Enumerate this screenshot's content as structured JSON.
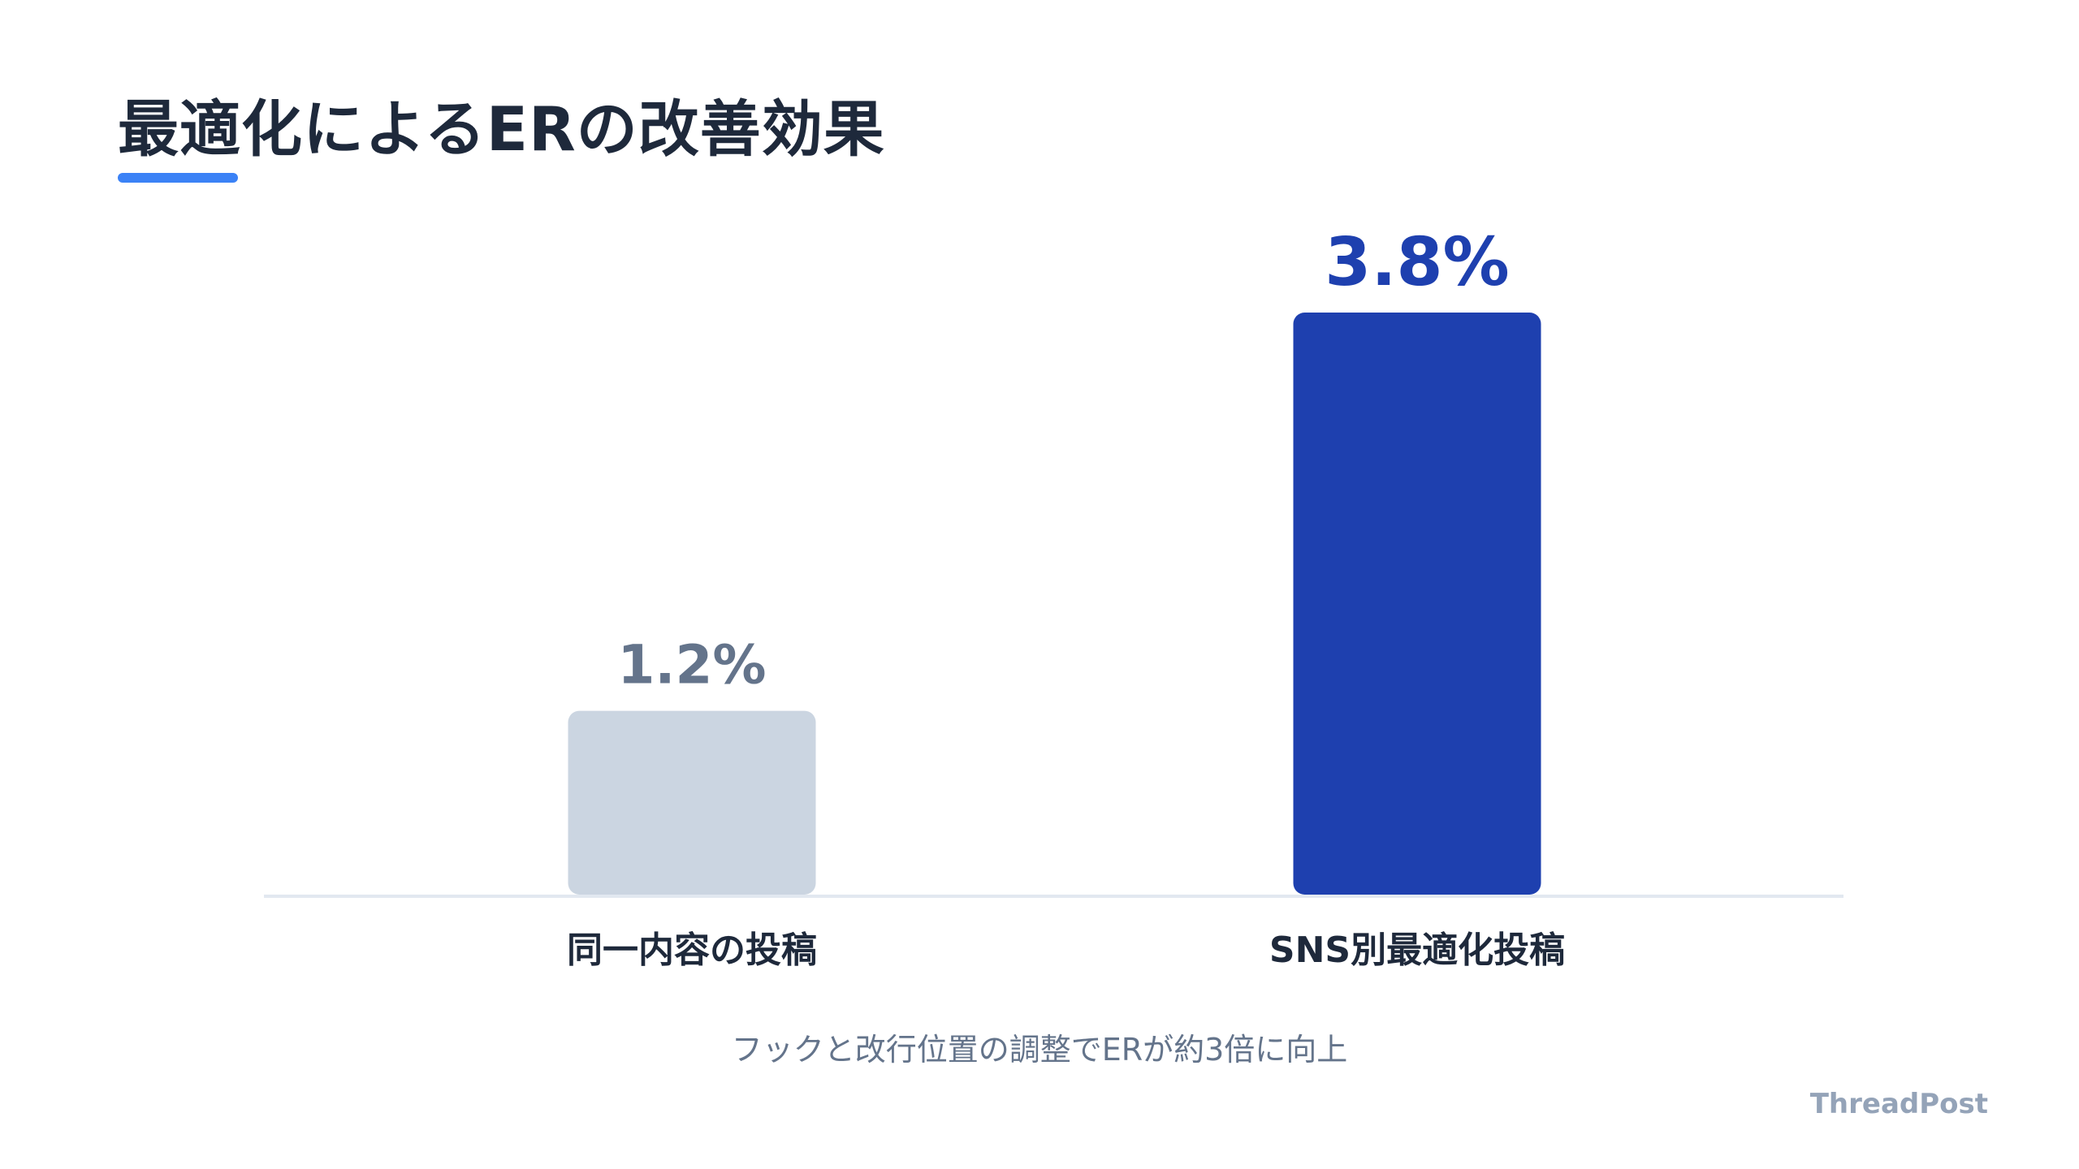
{
  "header": {
    "title": "最適化によるERの改善効果"
  },
  "chart_data": {
    "type": "bar",
    "categories": [
      "同一内容の投稿",
      "SNS別最適化投稿"
    ],
    "values": [
      1.2,
      3.8
    ],
    "value_labels": [
      "1.2%",
      "3.8%"
    ],
    "ylim": [
      0,
      3.8
    ],
    "grid": false,
    "colors": [
      "#cbd5e1",
      "#1e40af"
    ],
    "label_colors": [
      "#64748b",
      "#1e40af"
    ]
  },
  "footer": {
    "caption": "フックと改行位置の調整でERが約3倍に向上",
    "brand": "ThreadPost"
  },
  "theme": {
    "accent": "#3b82f6",
    "text_dark": "#1e293b",
    "muted": "#64748b"
  }
}
